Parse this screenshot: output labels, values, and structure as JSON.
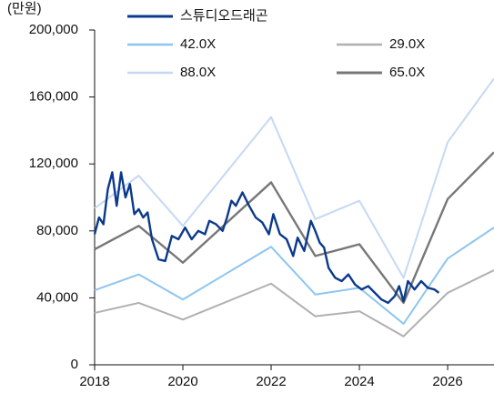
{
  "chart_data": {
    "type": "line",
    "y_unit": "(만원)",
    "xlim": [
      2018,
      2027.05
    ],
    "xticks": [
      2018,
      2020,
      2022,
      2024,
      2026
    ],
    "ylim": [
      0,
      200000
    ],
    "yticks": [
      0,
      {
        "value": 40000,
        "label": "40,000"
      },
      {
        "value": 80000,
        "label": "80,000"
      },
      {
        "value": 120000,
        "label": "120,000"
      },
      {
        "value": 160000,
        "label": "160,000"
      },
      {
        "value": 200000,
        "label": "200,000"
      }
    ],
    "series": [
      {
        "name": "스튜디오드래곤",
        "color": "#0b3a8c",
        "width": 2.4,
        "x": [
          2018.0,
          2018.1,
          2018.2,
          2018.3,
          2018.4,
          2018.5,
          2018.6,
          2018.7,
          2018.8,
          2018.9,
          2019.0,
          2019.1,
          2019.2,
          2019.3,
          2019.45,
          2019.6,
          2019.75,
          2019.9,
          2020.05,
          2020.2,
          2020.35,
          2020.5,
          2020.6,
          2020.75,
          2020.9,
          2021.0,
          2021.1,
          2021.2,
          2021.35,
          2021.5,
          2021.65,
          2021.8,
          2021.95,
          2022.05,
          2022.2,
          2022.35,
          2022.5,
          2022.6,
          2022.75,
          2022.9,
          2023.0,
          2023.1,
          2023.2,
          2023.3,
          2023.45,
          2023.6,
          2023.75,
          2023.9,
          2024.05,
          2024.2,
          2024.35,
          2024.5,
          2024.65,
          2024.8,
          2024.9,
          2025.0,
          2025.1,
          2025.25,
          2025.4,
          2025.55,
          2025.7,
          2025.8
        ],
        "values": [
          78000,
          88000,
          84000,
          105000,
          115000,
          95000,
          115000,
          100000,
          108000,
          90000,
          93000,
          88000,
          91000,
          75000,
          63000,
          62000,
          77000,
          75000,
          82000,
          75000,
          80000,
          78000,
          86000,
          84000,
          80000,
          88000,
          98000,
          95000,
          103000,
          95000,
          88000,
          85000,
          78000,
          90000,
          78000,
          75000,
          65000,
          76000,
          68000,
          86000,
          80000,
          73000,
          70000,
          58000,
          52000,
          50000,
          54000,
          48000,
          45000,
          47000,
          43000,
          39000,
          37000,
          41000,
          47000,
          38000,
          50000,
          45000,
          50000,
          46000,
          45000,
          43000
        ]
      },
      {
        "name": "29.0X",
        "color": "#b0b0b0",
        "width": 2,
        "x": [
          2018,
          2019,
          2020,
          2022,
          2023,
          2024,
          2025,
          2026,
          2027.05
        ],
        "values": [
          31000,
          37000,
          27000,
          48500,
          29000,
          32000,
          17000,
          43000,
          56500
        ]
      },
      {
        "name": "42.0X",
        "color": "#8ec5ef",
        "width": 2,
        "x": [
          2018,
          2019,
          2020,
          2022,
          2023,
          2024,
          2025,
          2026,
          2027.05
        ],
        "values": [
          44500,
          54000,
          39000,
          70500,
          42000,
          46000,
          24500,
          63500,
          82000
        ]
      },
      {
        "name": "65.0X",
        "color": "#777777",
        "width": 2.4,
        "x": [
          2018,
          2019,
          2020,
          2022,
          2023,
          2024,
          2025,
          2026,
          2027.05
        ],
        "values": [
          69000,
          83000,
          61000,
          109000,
          65000,
          72000,
          37000,
          99000,
          127000
        ]
      },
      {
        "name": "88.0X",
        "color": "#c6d8f5",
        "width": 2,
        "x": [
          2018,
          2019,
          2020,
          2022,
          2023,
          2024,
          2025,
          2026,
          2027.05
        ],
        "values": [
          93500,
          113000,
          83000,
          148000,
          87000,
          98000,
          52000,
          133000,
          171000
        ]
      }
    ]
  }
}
